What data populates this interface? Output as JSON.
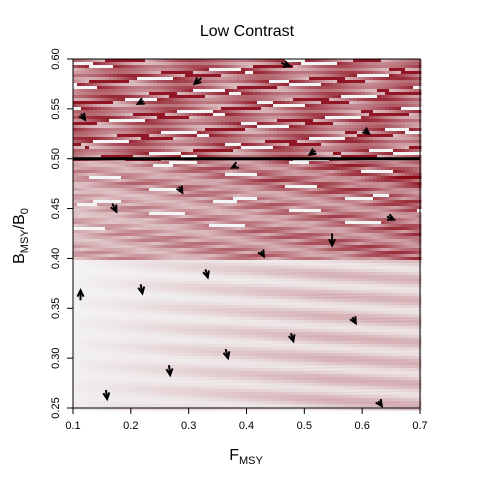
{
  "chart_data": {
    "type": "heatmap",
    "title": "Low Contrast",
    "xlabel": {
      "main": "F",
      "sub": "MSY"
    },
    "ylabel": {
      "main_b": "B",
      "sub_msy": "MSY",
      "slash": "/B",
      "sub_0": "0"
    },
    "xlim": [
      0.1,
      0.7
    ],
    "ylim": [
      0.25,
      0.6
    ],
    "x_ticks": [
      "0.1",
      "0.2",
      "0.3",
      "0.4",
      "0.5",
      "0.6",
      "0.7"
    ],
    "y_ticks": [
      "0.25",
      "0.30",
      "0.35",
      "0.40",
      "0.45",
      "0.50",
      "0.55",
      "0.60"
    ],
    "reference_line_y": 0.5,
    "colors": {
      "low": "#f4f4f4",
      "high": "#8b0a1a",
      "axis": "#000000",
      "arrow": "#000000"
    },
    "arrows": [
      {
        "x": 0.114,
        "y": 0.545,
        "dx": 0.007,
        "dy": -0.006
      },
      {
        "x": 0.168,
        "y": 0.455,
        "dx": 0.007,
        "dy": -0.008
      },
      {
        "x": 0.113,
        "y": 0.358,
        "dx": 0.0,
        "dy": 0.01
      },
      {
        "x": 0.157,
        "y": 0.268,
        "dx": 0.002,
        "dy": -0.009
      },
      {
        "x": 0.222,
        "y": 0.558,
        "dx": -0.01,
        "dy": -0.003
      },
      {
        "x": 0.217,
        "y": 0.374,
        "dx": 0.003,
        "dy": -0.009
      },
      {
        "x": 0.266,
        "y": 0.293,
        "dx": 0.002,
        "dy": -0.01
      },
      {
        "x": 0.283,
        "y": 0.472,
        "dx": 0.006,
        "dy": -0.006
      },
      {
        "x": 0.322,
        "y": 0.581,
        "dx": -0.012,
        "dy": -0.006
      },
      {
        "x": 0.329,
        "y": 0.389,
        "dx": 0.004,
        "dy": -0.008
      },
      {
        "x": 0.364,
        "y": 0.309,
        "dx": 0.004,
        "dy": -0.009
      },
      {
        "x": 0.382,
        "y": 0.493,
        "dx": -0.007,
        "dy": -0.002
      },
      {
        "x": 0.425,
        "y": 0.407,
        "dx": 0.005,
        "dy": -0.005
      },
      {
        "x": 0.46,
        "y": 0.596,
        "dx": 0.015,
        "dy": -0.003
      },
      {
        "x": 0.477,
        "y": 0.325,
        "dx": 0.004,
        "dy": -0.008
      },
      {
        "x": 0.519,
        "y": 0.508,
        "dx": -0.01,
        "dy": -0.004
      },
      {
        "x": 0.548,
        "y": 0.425,
        "dx": 0.0,
        "dy": -0.012
      },
      {
        "x": 0.583,
        "y": 0.341,
        "dx": 0.006,
        "dy": -0.006
      },
      {
        "x": 0.603,
        "y": 0.529,
        "dx": 0.009,
        "dy": -0.004
      },
      {
        "x": 0.628,
        "y": 0.257,
        "dx": 0.006,
        "dy": -0.005
      },
      {
        "x": 0.643,
        "y": 0.442,
        "dx": 0.012,
        "dy": -0.003
      }
    ],
    "grid": false,
    "legend": "none"
  }
}
